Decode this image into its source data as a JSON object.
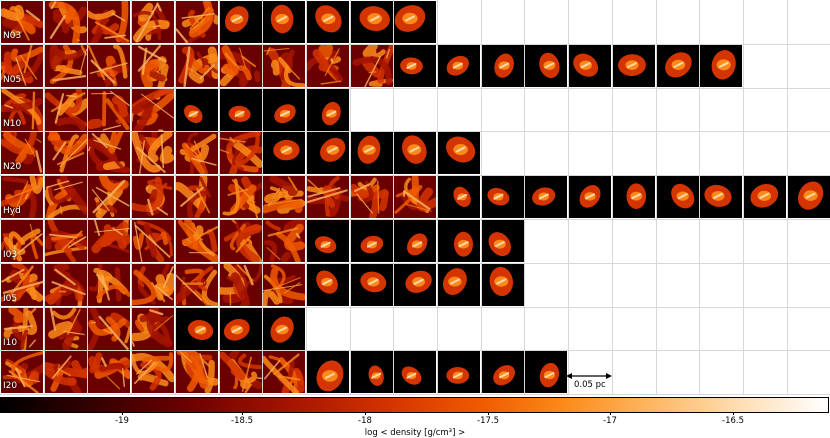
{
  "rows": [
    {
      "label": "N03",
      "panels": 10
    },
    {
      "label": "N05",
      "panels": 17
    },
    {
      "label": "N10",
      "panels": 8
    },
    {
      "label": "N20",
      "panels": 11
    },
    {
      "label": "Hyd",
      "panels": 19
    },
    {
      "label": "I03",
      "panels": 12
    },
    {
      "label": "I05",
      "panels": 12
    },
    {
      "label": "I10",
      "panels": 7
    },
    {
      "label": "I20",
      "panels": 13
    }
  ],
  "scale_bar": {
    "label": "0.05 pc"
  },
  "colorbar": {
    "ticks": [
      "-19",
      "-18.5",
      "-18",
      "-17.5",
      "-17",
      "-16.5"
    ],
    "label": "log < density [g/cm³] >",
    "colors": [
      "#000000",
      "#300000",
      "#6a0000",
      "#a51400",
      "#d43400",
      "#f05a00",
      "#fb8a1a",
      "#fdb45e",
      "#ffd9a8",
      "#ffffff"
    ]
  }
}
